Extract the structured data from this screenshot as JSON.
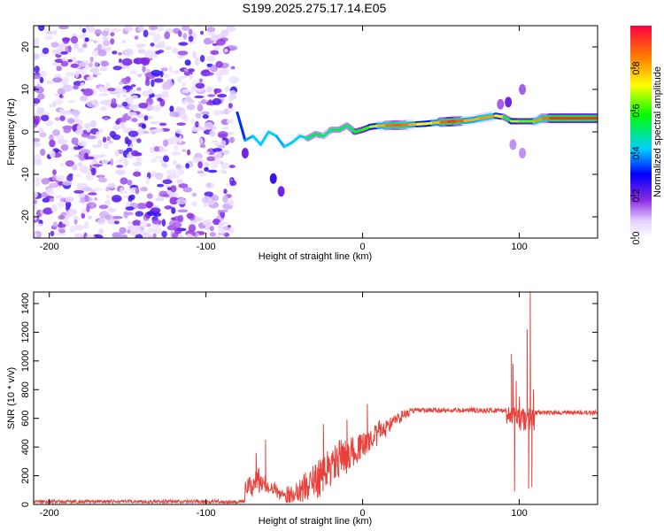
{
  "chart_data": [
    {
      "type": "heatmap",
      "title": "S199.2025.275.17.14.E05",
      "xlabel": "Height of straight line (km)",
      "ylabel": "Frequency (Hz)",
      "xlim": [
        -210,
        150
      ],
      "ylim": [
        -25,
        25
      ],
      "xticks": [
        -200,
        -100,
        0,
        100
      ],
      "yticks": [
        -20,
        -10,
        0,
        10,
        20
      ],
      "colorbar": {
        "label": "Normalized spectral amplitude",
        "range": [
          0,
          1
        ],
        "ticks": [
          0.0,
          0.2,
          0.4,
          0.6,
          0.8
        ]
      },
      "noise_region_x": [
        -210,
        -82
      ],
      "ridge": [
        {
          "x": -80,
          "y": 4.5,
          "a": 0.3
        },
        {
          "x": -75,
          "y": -2,
          "a": 0.35
        },
        {
          "x": -70,
          "y": -1,
          "a": 0.45
        },
        {
          "x": -65,
          "y": -3,
          "a": 0.4
        },
        {
          "x": -60,
          "y": 0,
          "a": 0.45
        },
        {
          "x": -55,
          "y": -1,
          "a": 0.4
        },
        {
          "x": -50,
          "y": -3.5,
          "a": 0.4
        },
        {
          "x": -45,
          "y": -2.5,
          "a": 0.45
        },
        {
          "x": -40,
          "y": -1,
          "a": 0.4
        },
        {
          "x": -35,
          "y": -1.5,
          "a": 0.5
        },
        {
          "x": -30,
          "y": -0.5,
          "a": 0.55
        },
        {
          "x": -25,
          "y": -1,
          "a": 0.5
        },
        {
          "x": -20,
          "y": 0.5,
          "a": 0.5
        },
        {
          "x": -15,
          "y": 0.5,
          "a": 0.55
        },
        {
          "x": -10,
          "y": 1.5,
          "a": 0.5
        },
        {
          "x": -5,
          "y": 0,
          "a": 0.55
        },
        {
          "x": 0,
          "y": 0.5,
          "a": 0.6
        },
        {
          "x": 5,
          "y": 1.2,
          "a": 0.6
        },
        {
          "x": 10,
          "y": 1.4,
          "a": 0.75
        },
        {
          "x": 15,
          "y": 1.5,
          "a": 0.85
        },
        {
          "x": 20,
          "y": 1.6,
          "a": 0.9
        },
        {
          "x": 25,
          "y": 1.6,
          "a": 0.9
        },
        {
          "x": 30,
          "y": 1.7,
          "a": 0.85
        },
        {
          "x": 35,
          "y": 1.8,
          "a": 0.75
        },
        {
          "x": 40,
          "y": 1.9,
          "a": 0.7
        },
        {
          "x": 45,
          "y": 2.1,
          "a": 0.72
        },
        {
          "x": 50,
          "y": 2.3,
          "a": 0.85
        },
        {
          "x": 55,
          "y": 2.4,
          "a": 0.95
        },
        {
          "x": 60,
          "y": 2.5,
          "a": 0.95
        },
        {
          "x": 65,
          "y": 2.6,
          "a": 0.85
        },
        {
          "x": 70,
          "y": 2.8,
          "a": 0.75
        },
        {
          "x": 75,
          "y": 3.2,
          "a": 0.85
        },
        {
          "x": 80,
          "y": 3.5,
          "a": 0.8
        },
        {
          "x": 85,
          "y": 3.8,
          "a": 0.85
        },
        {
          "x": 90,
          "y": 3.5,
          "a": 0.6
        },
        {
          "x": 95,
          "y": 2.5,
          "a": 0.5
        },
        {
          "x": 100,
          "y": 2.5,
          "a": 0.85
        },
        {
          "x": 105,
          "y": 2.5,
          "a": 0.4
        },
        {
          "x": 110,
          "y": 2.5,
          "a": 0.85
        },
        {
          "x": 115,
          "y": 3.2,
          "a": 0.8
        },
        {
          "x": 120,
          "y": 3.2,
          "a": 0.95
        },
        {
          "x": 130,
          "y": 3.2,
          "a": 0.95
        },
        {
          "x": 140,
          "y": 3.2,
          "a": 0.95
        },
        {
          "x": 150,
          "y": 3.2,
          "a": 0.95
        }
      ],
      "blobs": [
        {
          "x": -57,
          "y": -11,
          "a": 0.25
        },
        {
          "x": -52,
          "y": -14,
          "a": 0.2
        },
        {
          "x": -75,
          "y": -5,
          "a": 0.2
        },
        {
          "x": 93,
          "y": 7,
          "a": 0.2
        },
        {
          "x": 88,
          "y": 6.5,
          "a": 0.15
        },
        {
          "x": 102,
          "y": 10,
          "a": 0.15
        },
        {
          "x": 102,
          "y": -5,
          "a": 0.12
        },
        {
          "x": 96,
          "y": -3,
          "a": 0.12
        }
      ]
    },
    {
      "type": "line",
      "xlabel": "Height of straight line (km)",
      "ylabel": "SNR (10 * v/v)",
      "xlim": [
        -210,
        150
      ],
      "ylim": [
        0,
        1480
      ],
      "xticks": [
        -200,
        -100,
        0,
        100
      ],
      "yticks": [
        0,
        200,
        400,
        600,
        800,
        1000,
        1200,
        1400
      ],
      "color": "#e8403a",
      "baseline_segments": [
        {
          "x": [
            -210,
            -75
          ],
          "base": 20,
          "noise": 12
        },
        {
          "x": [
            -75,
            -70
          ],
          "base": 120,
          "noise": 70
        },
        {
          "x": [
            -70,
            -65
          ],
          "base": 170,
          "noise": 90
        },
        {
          "x": [
            -65,
            -60
          ],
          "base": 140,
          "noise": 60
        },
        {
          "x": [
            -60,
            -55
          ],
          "base": 110,
          "noise": 40
        },
        {
          "x": [
            -55,
            -50
          ],
          "base": 80,
          "noise": 50
        },
        {
          "x": [
            -50,
            -45
          ],
          "base": 70,
          "noise": 60
        },
        {
          "x": [
            -45,
            -40
          ],
          "base": 90,
          "noise": 80
        },
        {
          "x": [
            -40,
            -35
          ],
          "base": 120,
          "noise": 110
        },
        {
          "x": [
            -35,
            -30
          ],
          "base": 150,
          "noise": 130
        },
        {
          "x": [
            -30,
            -25
          ],
          "base": 190,
          "noise": 140
        },
        {
          "x": [
            -25,
            -20
          ],
          "base": 240,
          "noise": 140
        },
        {
          "x": [
            -20,
            -15
          ],
          "base": 290,
          "noise": 130
        },
        {
          "x": [
            -15,
            -10
          ],
          "base": 330,
          "noise": 120
        },
        {
          "x": [
            -10,
            -5
          ],
          "base": 360,
          "noise": 110
        },
        {
          "x": [
            -5,
            0
          ],
          "base": 390,
          "noise": 100
        },
        {
          "x": [
            0,
            5
          ],
          "base": 430,
          "noise": 90
        },
        {
          "x": [
            5,
            10
          ],
          "base": 480,
          "noise": 80
        },
        {
          "x": [
            10,
            15
          ],
          "base": 520,
          "noise": 70
        },
        {
          "x": [
            15,
            20
          ],
          "base": 560,
          "noise": 50
        },
        {
          "x": [
            20,
            25
          ],
          "base": 600,
          "noise": 40
        },
        {
          "x": [
            25,
            30
          ],
          "base": 630,
          "noise": 25
        },
        {
          "x": [
            30,
            92
          ],
          "base": 655,
          "noise": 18
        },
        {
          "x": [
            92,
            100
          ],
          "base": 620,
          "noise": 60
        },
        {
          "x": [
            100,
            110
          ],
          "base": 590,
          "noise": 80
        },
        {
          "x": [
            110,
            150
          ],
          "base": 640,
          "noise": 15
        }
      ],
      "spikes": [
        {
          "x": -62,
          "y": 450
        },
        {
          "x": -68,
          "y": 360
        },
        {
          "x": -25,
          "y": 560
        },
        {
          "x": -10,
          "y": 590
        },
        {
          "x": 3,
          "y": 700
        },
        {
          "x": 95,
          "y": 1050
        },
        {
          "x": 96,
          "y": 980
        },
        {
          "x": 97,
          "y": 90
        },
        {
          "x": 98,
          "y": 860
        },
        {
          "x": 100,
          "y": 750
        },
        {
          "x": 105,
          "y": 1220
        },
        {
          "x": 106,
          "y": 110
        },
        {
          "x": 107,
          "y": 1480
        },
        {
          "x": 108,
          "y": 120
        },
        {
          "x": 109,
          "y": 800
        }
      ]
    }
  ]
}
